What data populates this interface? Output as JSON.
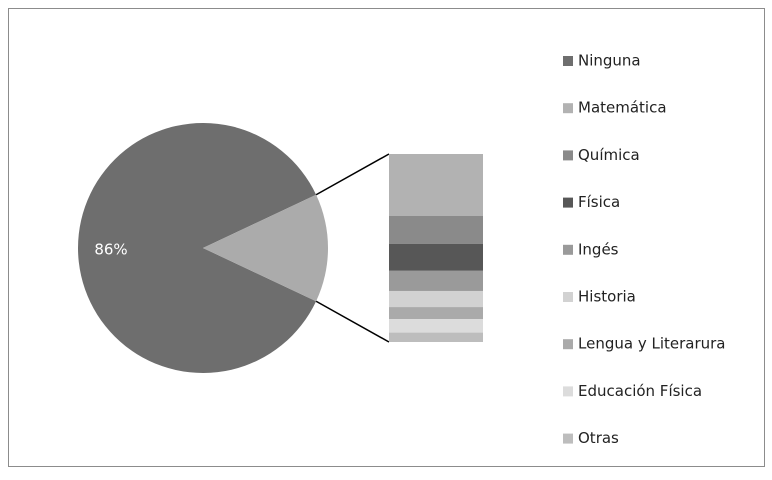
{
  "chart_data": {
    "type": "pie-of-bar",
    "categories": [
      "Ninguna",
      "Matemática",
      "Química",
      "Física",
      "Ingés",
      "Historia",
      "Lengua y Literarura",
      "Educación Física",
      "Otras"
    ],
    "values": [
      86,
      4.6,
      2.1,
      2,
      1.5,
      1.2,
      0.9,
      1,
      0.7
    ],
    "value_labels": [
      "86%",
      null,
      null,
      null,
      null,
      null,
      null,
      null,
      null
    ],
    "colors": [
      "#6e6e6e",
      "#b2b2b2",
      "#8a8a8a",
      "#575757",
      "#9a9a9a",
      "#d2d2d2",
      "#aaaaaa",
      "#dcdcdc",
      "#bdbdbd"
    ],
    "other_color": "#ababab"
  }
}
